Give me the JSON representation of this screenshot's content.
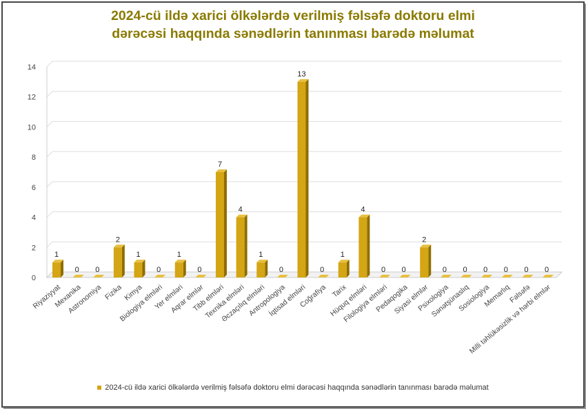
{
  "chart_data": {
    "type": "bar",
    "title": "2024-cü ildə xarici ölkələrdə verilmiş fəlsəfə doktoru elmi dərəcəsi haqqında sənədlərin tanınması barədə məlumat",
    "title_lines": [
      "2024-cü ildə xarici ölkələrdə verilmiş fəlsəfə doktoru elmi",
      "dərəcəsi haqqında sənədlərin tanınması barədə məlumat"
    ],
    "categories": [
      "Riyaziyyat",
      "Mexanika",
      "Astronomiya",
      "Fizika",
      "Kimya",
      "Biologiya elmləri",
      "Yer elmləri",
      "Aqrar elmlər",
      "Tibb elmləri",
      "Texnika elmləri",
      "Əczaçılıq elmləri",
      "Antropologiya",
      "İqtisad elmləri",
      "Coğrafiya",
      "Tarix",
      "Hüquq elmləri",
      "Filologiya elmləri",
      "Pedaqogika",
      "Siyasi elmlər",
      "Psixologiya",
      "Sənətşünaslıq",
      "Sosiologiya",
      "Memarlıq",
      "Fəlsəfə",
      "Milli təhlükəsizlik və hərbi elmlər"
    ],
    "series": [
      {
        "name": "2024-cü ildə xarici ölkələrdə verilmiş fəlsəfə doktoru elmi dərəcəsi haqqında sənədlərin tanınması barədə məlumat",
        "values": [
          1,
          0,
          0,
          2,
          1,
          0,
          1,
          0,
          7,
          4,
          1,
          0,
          13,
          0,
          1,
          4,
          0,
          0,
          2,
          0,
          0,
          0,
          0,
          0,
          0
        ]
      }
    ],
    "yticks": [
      0,
      2,
      4,
      6,
      8,
      10,
      12,
      14
    ],
    "ylim": [
      0,
      14
    ],
    "xlabel": "",
    "ylabel": "",
    "grid": true,
    "legend": "bottom",
    "colors": {
      "bar": "#d4a514",
      "bar_side": "#8f6e00",
      "bar_top": "#e8c040",
      "title": "#8a7a00"
    }
  }
}
